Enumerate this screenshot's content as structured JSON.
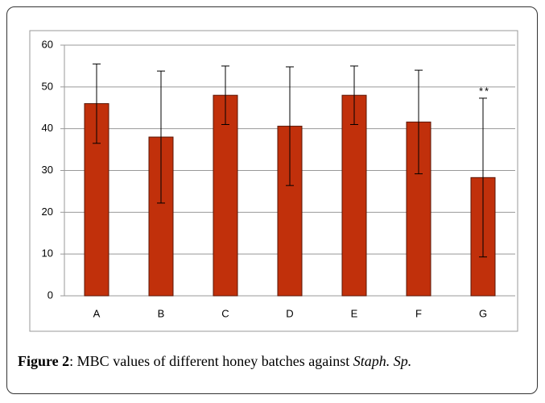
{
  "chart_data": {
    "type": "bar",
    "categories": [
      "A",
      "B",
      "C",
      "D",
      "E",
      "F",
      "G"
    ],
    "values": [
      46,
      38,
      48,
      40.6,
      48,
      41.6,
      28.3
    ],
    "errors": [
      9.5,
      15.8,
      7,
      14.2,
      7,
      12.4,
      19
    ],
    "color": "#c1300b",
    "ylim": [
      0,
      60
    ],
    "yticks": [
      0,
      10,
      20,
      30,
      40,
      50,
      60
    ],
    "grid": true,
    "annotations": [
      {
        "category": 6,
        "text": "**"
      }
    ]
  },
  "caption": {
    "label": "Figure 2",
    "text": ": MBC values of different honey batches against ",
    "italic": "Staph. Sp."
  }
}
